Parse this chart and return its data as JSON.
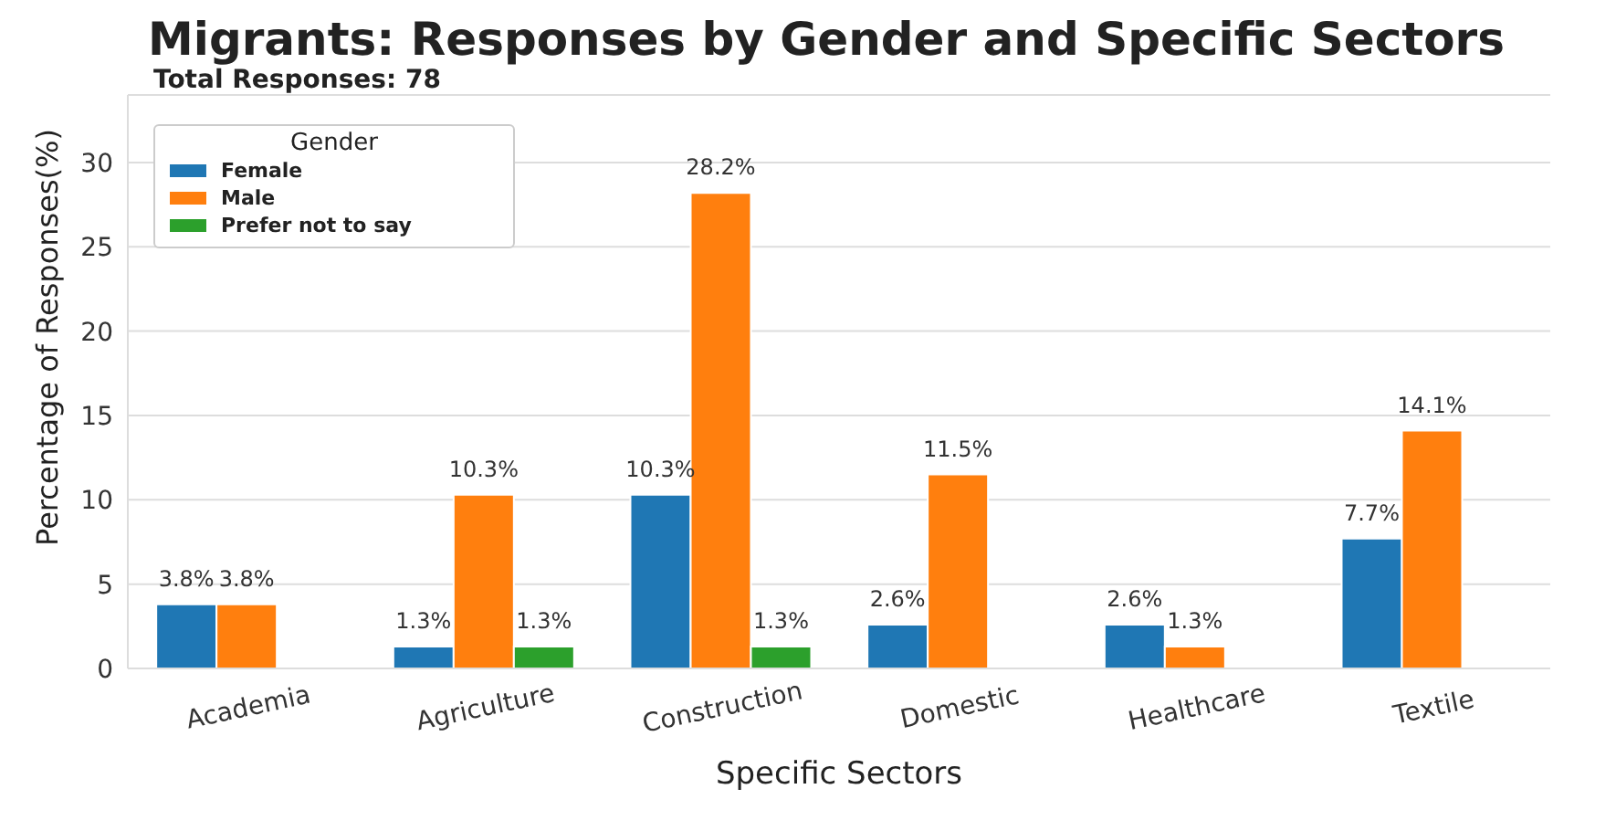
{
  "chart_data": {
    "type": "bar",
    "title": "Migrants: Responses by Gender and Specific Sectors",
    "subtitle": "Total Responses: 78",
    "xlabel": "Specific Sectors",
    "ylabel": "Percentage of Responses(%)",
    "legend_title": "Gender",
    "categories": [
      "Academia",
      "Agriculture",
      "Construction",
      "Domestic",
      "Healthcare",
      "Textile"
    ],
    "series": [
      {
        "name": "Female",
        "color": "#1f77b4",
        "values": [
          3.8,
          1.3,
          10.3,
          2.6,
          2.6,
          7.7
        ],
        "value_labels": [
          "3.8%",
          "1.3%",
          "10.3%",
          "2.6%",
          "2.6%",
          "7.7%"
        ]
      },
      {
        "name": "Male",
        "color": "#ff7f0e",
        "values": [
          3.8,
          10.3,
          28.2,
          11.5,
          1.3,
          14.1
        ],
        "value_labels": [
          "3.8%",
          "10.3%",
          "28.2%",
          "11.5%",
          "1.3%",
          "14.1%"
        ]
      },
      {
        "name": "Prefer not to say",
        "color": "#2ca02c",
        "values": [
          null,
          1.3,
          1.3,
          null,
          null,
          null
        ],
        "value_labels": [
          null,
          "1.3%",
          "1.3%",
          null,
          null,
          null
        ]
      }
    ],
    "ylim": [
      0,
      34
    ],
    "yticks": [
      0,
      5,
      10,
      15,
      20,
      25,
      30
    ],
    "grid": "y",
    "legend": "top left"
  }
}
